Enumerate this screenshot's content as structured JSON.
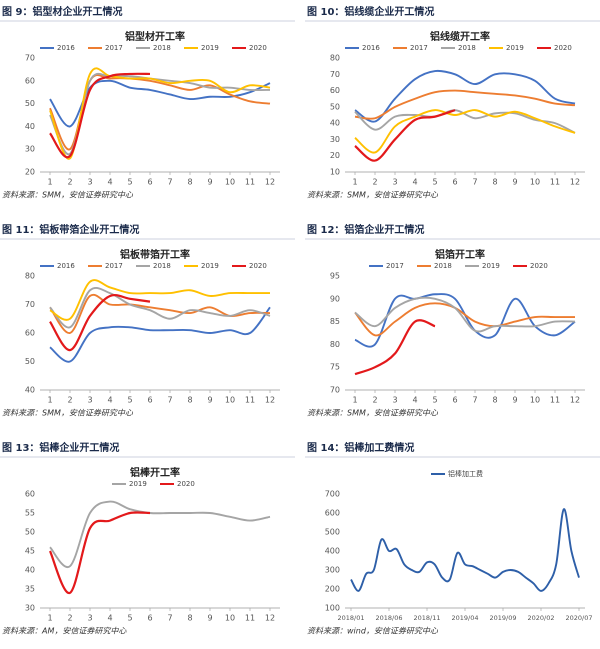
{
  "chart_data": [
    {
      "type": "line",
      "caption": "图 9：铝型材企业开工情况",
      "title": "铝型材开工率",
      "source": "资料来源：SMM，安信证券研究中心",
      "x": [
        1,
        2,
        3,
        4,
        5,
        6,
        7,
        8,
        9,
        10,
        11,
        12
      ],
      "xlim": [
        0.5,
        12.5
      ],
      "xticks": [
        1,
        2,
        3,
        4,
        5,
        6,
        7,
        8,
        9,
        10,
        11,
        12
      ],
      "ylim": [
        20,
        70
      ],
      "yticks": [
        20,
        30,
        40,
        50,
        60,
        70
      ],
      "series": [
        {
          "name": "2016",
          "color": "#4472c4",
          "values": [
            52,
            40,
            57,
            60,
            57,
            56,
            54,
            52,
            53,
            53,
            55,
            59
          ]
        },
        {
          "name": "2017",
          "color": "#ed7d31",
          "values": [
            48,
            30,
            60,
            61,
            61,
            60,
            58,
            56,
            58,
            54,
            51,
            50
          ]
        },
        {
          "name": "2018",
          "color": "#a5a5a5",
          "values": [
            45,
            28,
            60,
            62,
            62,
            61,
            60,
            59,
            57,
            57,
            56,
            56
          ]
        },
        {
          "name": "2019",
          "color": "#ffc000",
          "values": [
            47,
            26,
            63,
            62,
            61,
            61,
            59,
            60,
            60,
            55,
            58,
            57
          ]
        },
        {
          "name": "2020",
          "color": "#e3191b",
          "values": [
            37,
            27,
            56,
            62,
            63,
            63,
            null,
            null,
            null,
            null,
            null,
            null
          ]
        }
      ]
    },
    {
      "type": "line",
      "caption": "图 10：铝线缆企业开工情况",
      "title": "铝线缆开工率",
      "source": "资料来源：SMM，安信证券研究中心",
      "x": [
        1,
        2,
        3,
        4,
        5,
        6,
        7,
        8,
        9,
        10,
        11,
        12
      ],
      "xlim": [
        0.5,
        12.5
      ],
      "xticks": [
        1,
        2,
        3,
        4,
        5,
        6,
        7,
        8,
        9,
        10,
        11,
        12
      ],
      "ylim": [
        10,
        80
      ],
      "yticks": [
        10,
        20,
        30,
        40,
        50,
        60,
        70,
        80
      ],
      "series": [
        {
          "name": "2016",
          "color": "#4472c4",
          "values": [
            48,
            41,
            55,
            67,
            72,
            70,
            64,
            70,
            70,
            66,
            55,
            52
          ]
        },
        {
          "name": "2017",
          "color": "#ed7d31",
          "values": [
            44,
            43,
            50,
            55,
            59,
            60,
            59,
            58,
            57,
            55,
            52,
            51
          ]
        },
        {
          "name": "2018",
          "color": "#a5a5a5",
          "values": [
            47,
            36,
            44,
            45,
            44,
            48,
            43,
            46,
            46,
            42,
            40,
            34
          ]
        },
        {
          "name": "2019",
          "color": "#ffc000",
          "values": [
            31,
            22,
            38,
            44,
            48,
            45,
            48,
            44,
            47,
            43,
            38,
            34
          ]
        },
        {
          "name": "2020",
          "color": "#e3191b",
          "values": [
            26,
            17,
            30,
            42,
            44,
            48,
            null,
            null,
            null,
            null,
            null,
            null
          ]
        }
      ]
    },
    {
      "type": "line",
      "caption": "图 11：铝板带箔企业开工情况",
      "title": "铝板带箔开工率",
      "source": "资料来源：SMM，安信证券研究中心",
      "x": [
        1,
        2,
        3,
        4,
        5,
        6,
        7,
        8,
        9,
        10,
        11,
        12
      ],
      "xlim": [
        0.5,
        12.5
      ],
      "xticks": [
        1,
        2,
        3,
        4,
        5,
        6,
        7,
        8,
        9,
        10,
        11,
        12
      ],
      "ylim": [
        40,
        80
      ],
      "yticks": [
        40,
        50,
        60,
        70,
        80
      ],
      "series": [
        {
          "name": "2016",
          "color": "#4472c4",
          "values": [
            55,
            50,
            60,
            62,
            62,
            61,
            61,
            61,
            60,
            61,
            60,
            69
          ]
        },
        {
          "name": "2017",
          "color": "#ed7d31",
          "values": [
            69,
            60,
            73,
            70,
            70,
            69,
            68,
            67,
            69,
            66,
            67,
            67
          ]
        },
        {
          "name": "2018",
          "color": "#a5a5a5",
          "values": [
            69,
            62,
            75,
            74,
            70,
            68,
            65,
            68,
            67,
            66,
            68,
            66
          ]
        },
        {
          "name": "2019",
          "color": "#ffc000",
          "values": [
            68,
            65,
            78,
            76,
            74,
            74,
            74,
            75,
            73,
            74,
            74,
            74
          ]
        },
        {
          "name": "2020",
          "color": "#e3191b",
          "values": [
            64,
            54,
            66,
            73,
            72,
            71,
            null,
            null,
            null,
            null,
            null,
            null
          ]
        }
      ]
    },
    {
      "type": "line",
      "caption": "图 12：铝箔企业开工情况",
      "title": "铝箔开工率",
      "source": "资料来源：SMM，安信证券研究中心",
      "x": [
        1,
        2,
        3,
        4,
        5,
        6,
        7,
        8,
        9,
        10,
        11,
        12
      ],
      "xlim": [
        0.5,
        12.5
      ],
      "xticks": [
        1,
        2,
        3,
        4,
        5,
        6,
        7,
        8,
        9,
        10,
        11,
        12
      ],
      "ylim": [
        70,
        95
      ],
      "yticks": [
        70,
        75,
        80,
        85,
        90,
        95
      ],
      "series": [
        {
          "name": "2017",
          "color": "#4472c4",
          "values": [
            81,
            80,
            90,
            90,
            91,
            90,
            83,
            82,
            90,
            84,
            82,
            85
          ]
        },
        {
          "name": "2018",
          "color": "#ed7d31",
          "values": [
            87,
            82,
            85,
            88,
            89,
            88,
            85,
            84,
            85,
            86,
            86,
            86
          ]
        },
        {
          "name": "2019",
          "color": "#a5a5a5",
          "values": [
            87,
            84,
            88,
            90,
            90,
            88,
            83,
            84,
            84,
            84,
            85,
            85
          ]
        },
        {
          "name": "2020",
          "color": "#e3191b",
          "values": [
            73.5,
            75,
            78,
            85,
            84,
            null,
            null,
            null,
            null,
            null,
            null,
            null
          ]
        }
      ]
    },
    {
      "type": "line",
      "caption": "图 13：铝棒企业开工情况",
      "title": "铝棒开工率",
      "source": "资料来源：AM，安信证券研究中心",
      "x": [
        1,
        2,
        3,
        4,
        5,
        6,
        7,
        8,
        9,
        10,
        11,
        12
      ],
      "xlim": [
        0.5,
        12.5
      ],
      "xticks": [
        1,
        2,
        3,
        4,
        5,
        6,
        7,
        8,
        9,
        10,
        11,
        12
      ],
      "ylim": [
        30,
        60
      ],
      "yticks": [
        30,
        35,
        40,
        45,
        50,
        55,
        60
      ],
      "series": [
        {
          "name": "2019",
          "color": "#a5a5a5",
          "values": [
            46,
            41,
            55,
            58,
            56,
            55,
            55,
            55,
            55,
            54,
            53,
            54
          ]
        },
        {
          "name": "2020",
          "color": "#e3191b",
          "values": [
            45,
            34,
            51,
            53,
            55,
            55,
            null,
            null,
            null,
            null,
            null,
            null
          ]
        }
      ]
    },
    {
      "type": "line",
      "caption": "图 14：铝棒加工费情况",
      "source": "资料来源：wind，安信证券研究中心",
      "x": [
        "2018/01",
        "2018/02",
        "2018/03",
        "2018/04",
        "2018/05",
        "2018/06",
        "2018/07",
        "2018/08",
        "2018/09",
        "2018/10",
        "2018/11",
        "2018/12",
        "2019/01",
        "2019/02",
        "2019/03",
        "2019/04",
        "2019/05",
        "2019/06",
        "2019/07",
        "2019/08",
        "2019/09",
        "2019/10",
        "2019/11",
        "2019/12",
        "2020/01",
        "2020/02",
        "2020/03",
        "2020/04",
        "2020/05",
        "2020/06",
        "2020/07"
      ],
      "xticks": [
        "2018/01",
        "2018/06",
        "2018/11",
        "2019/04",
        "2019/09",
        "2020/02",
        "2020/07"
      ],
      "ylim": [
        100,
        700
      ],
      "yticks": [
        100,
        200,
        300,
        400,
        500,
        600,
        700
      ],
      "series": [
        {
          "name": "铝棒加工费",
          "color": "#2e5fa8",
          "values": [
            250,
            190,
            280,
            300,
            460,
            400,
            410,
            330,
            300,
            290,
            340,
            330,
            260,
            250,
            390,
            330,
            320,
            300,
            280,
            260,
            290,
            300,
            290,
            260,
            230,
            190,
            230,
            330,
            620,
            400,
            260
          ]
        }
      ]
    }
  ]
}
